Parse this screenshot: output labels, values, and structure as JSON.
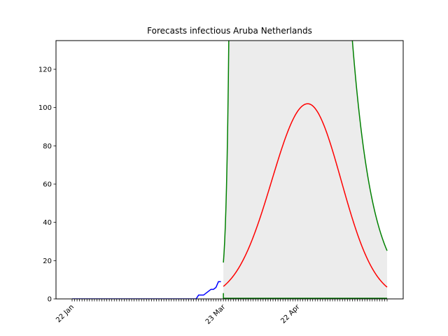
{
  "chart_data": {
    "type": "line",
    "title": "Forecasts infectious Aruba Netherlands",
    "xlabel": "",
    "ylabel": "",
    "x_axis": {
      "type": "date",
      "range": [
        "2020-01-22",
        "2020-05-28"
      ],
      "labeled_ticks": [
        {
          "date": "2020-01-22",
          "label": "22 Jan"
        },
        {
          "date": "2020-03-23",
          "label": "23 Mar"
        },
        {
          "date": "2020-04-22",
          "label": "22 Apr"
        }
      ],
      "minor_ticks": "daily"
    },
    "y_axis": {
      "range": [
        0,
        135
      ],
      "ticks": [
        0,
        20,
        40,
        60,
        80,
        100,
        120
      ]
    },
    "grid": false,
    "legend": "none",
    "colors": {
      "observed": "#0000ff",
      "forecast": "#ff0000",
      "bounds": "#008000",
      "band": "#ececec"
    },
    "series": [
      {
        "role": "observed",
        "x": [
          "2020-03-13",
          "2020-03-14",
          "2020-03-15",
          "2020-03-16",
          "2020-03-17",
          "2020-03-18",
          "2020-03-19",
          "2020-03-20",
          "2020-03-21",
          "2020-03-22"
        ],
        "values": [
          2,
          2,
          2,
          3,
          4,
          5,
          5,
          6,
          9,
          9
        ]
      },
      {
        "role": "forecast",
        "model": {
          "peak_date": "2020-04-26",
          "peak_value": 102,
          "start_date": "2020-03-23",
          "end_date": "2020-05-28"
        }
      },
      {
        "role": "upper_bound",
        "model": {
          "start_value": 19
        }
      },
      {
        "role": "lower_bound",
        "model": {
          "value": 0
        }
      }
    ]
  }
}
